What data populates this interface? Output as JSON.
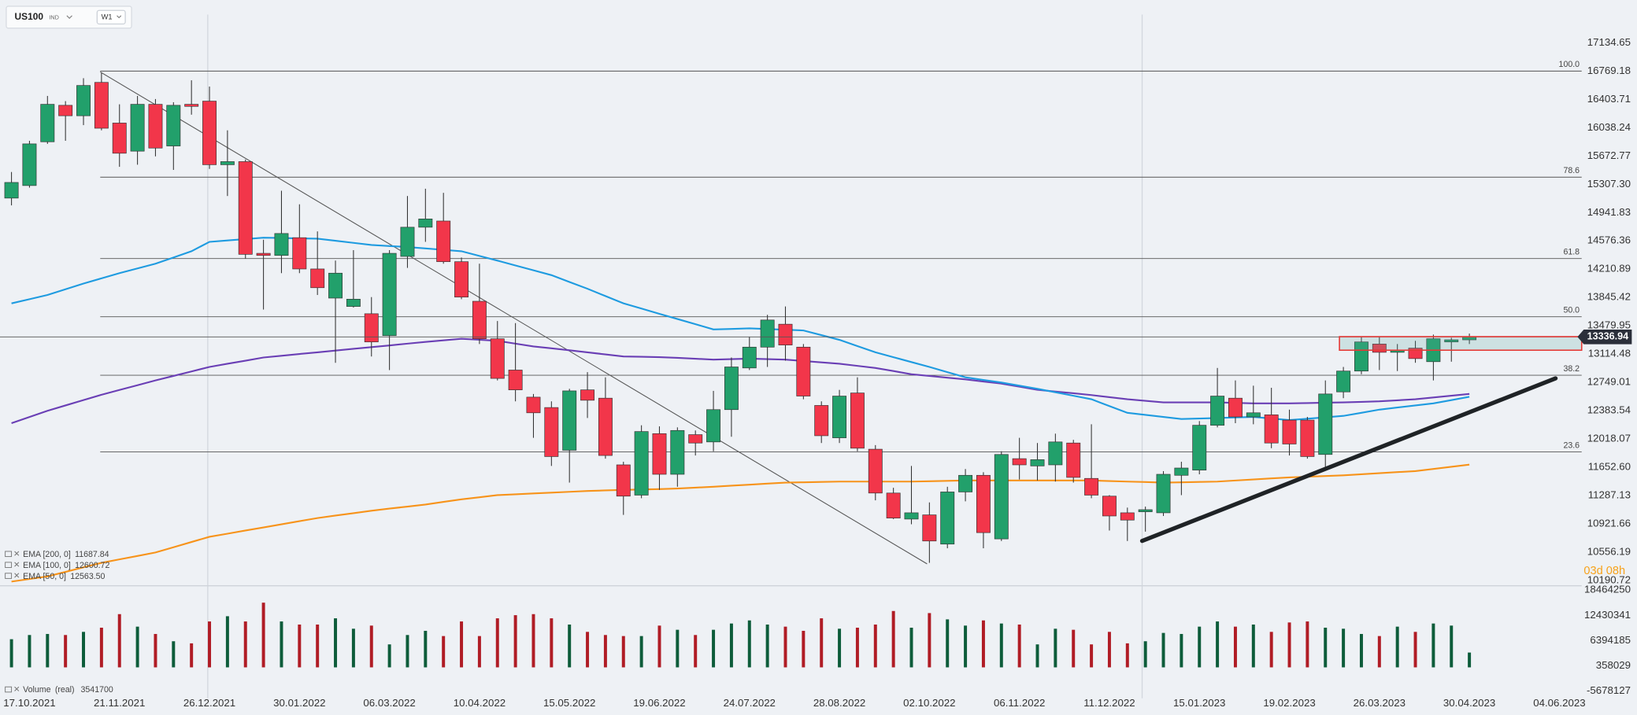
{
  "header": {
    "symbol": "US100",
    "market": "IND",
    "timeframe": "W1"
  },
  "chart_data": {
    "type": "candlestick",
    "categories": [
      null,
      "17.10.2021",
      null,
      null,
      null,
      null,
      "21.11.2021",
      null,
      null,
      null,
      null,
      "26.12.2021",
      null,
      null,
      null,
      null,
      "30.01.2022",
      null,
      null,
      null,
      null,
      "06.03.2022",
      null,
      null,
      null,
      null,
      "10.04.2022",
      null,
      null,
      null,
      null,
      "15.05.2022",
      null,
      null,
      null,
      null,
      "19.06.2022",
      null,
      null,
      null,
      null,
      "24.07.2022",
      null,
      null,
      null,
      null,
      "28.08.2022",
      null,
      null,
      null,
      null,
      "02.10.2022",
      null,
      null,
      null,
      null,
      "06.11.2022",
      null,
      null,
      null,
      null,
      "11.12.2022",
      null,
      null,
      null,
      null,
      "15.01.2023",
      null,
      null,
      null,
      null,
      "19.02.2023",
      null,
      null,
      null,
      null,
      "26.03.2023",
      null,
      null,
      null,
      null,
      "30.04.2023",
      null,
      null,
      null,
      null,
      "04.06.2023"
    ],
    "open": [
      15129,
      15291,
      15856,
      16327,
      16192,
      16623,
      16098,
      15735,
      16340,
      15802,
      16340,
      16381,
      15560,
      15600,
      14416,
      14389,
      14618,
      14214,
      13838,
      13730,
      13636,
      13353,
      14376,
      14753,
      14833,
      14308,
      13797,
      13313,
      12909,
      12559,
      12425,
      11873,
      12653,
      12546,
      11685,
      11294,
      12088,
      11563,
      12075,
      11981,
      12398,
      12936,
      13205,
      13501,
      13205,
      12452,
      12034,
      12613,
      11887,
      11321,
      10985,
      11039,
      10662,
      11335,
      11550,
      10729,
      11765,
      11671,
      11685,
      11967,
      11510,
      11281,
      11066,
      11079,
      11066,
      11550,
      11617,
      12196,
      12546,
      12304,
      12331,
      12263,
      12263,
      11819,
      12627,
      12896,
      13245,
      13138,
      13192,
      13017,
      13272,
      13299,
      null,
      null,
      null,
      null,
      null
    ],
    "high": [
      15466,
      15869,
      16448,
      16381,
      16677,
      16744,
      16340,
      16448,
      16408,
      16367,
      16650,
      16569,
      16004,
      15627,
      14591,
      15224,
      15049,
      14699,
      14322,
      14457,
      13851,
      14457,
      15156,
      15250,
      15197,
      14362,
      14282,
      13542,
      13515,
      12600,
      12505,
      12667,
      12882,
      12815,
      11725,
      12196,
      12182,
      12169,
      12129,
      12640,
      13071,
      13340,
      13622,
      13730,
      13245,
      12505,
      12653,
      12815,
      11940,
      11389,
      11671,
      11200,
      11402,
      11631,
      11590,
      11860,
      12034,
      11967,
      12088,
      12008,
      12209,
      11294,
      11133,
      11146,
      11604,
      11725,
      12250,
      12936,
      12775,
      12707,
      12680,
      12398,
      12304,
      12775,
      12949,
      13340,
      13340,
      13245,
      13286,
      13367,
      13326,
      13380,
      null,
      null,
      null,
      null,
      null
    ],
    "low": [
      15035,
      15264,
      15829,
      15869,
      16071,
      16004,
      15533,
      15560,
      15668,
      15493,
      16206,
      15506,
      15156,
      14349,
      13690,
      14160,
      14160,
      13878,
      13003,
      13716,
      13084,
      12909,
      14228,
      14564,
      14282,
      13824,
      13245,
      12775,
      12505,
      12034,
      11671,
      11456,
      12290,
      11765,
      11039,
      11254,
      11362,
      11402,
      11806,
      11860,
      12048,
      12909,
      12949,
      13030,
      12532,
      11967,
      11967,
      11860,
      11227,
      10985,
      10918,
      10420,
      10608,
      11214,
      10608,
      10702,
      11496,
      11483,
      11469,
      11456,
      11254,
      10837,
      10702,
      10823,
      11025,
      11294,
      11563,
      12169,
      12223,
      12209,
      11900,
      11806,
      11765,
      11658,
      12546,
      12855,
      12909,
      12896,
      13003,
      12775,
      13017,
      13245,
      null,
      null,
      null,
      null,
      null
    ],
    "close": [
      15331,
      15829,
      16340,
      16192,
      16583,
      16031,
      15708,
      16340,
      15775,
      16327,
      16313,
      15560,
      15600,
      14403,
      14389,
      14672,
      14214,
      13972,
      14160,
      13824,
      13272,
      14416,
      14753,
      14860,
      14308,
      13851,
      13313,
      12801,
      12653,
      12357,
      11792,
      12640,
      12519,
      11806,
      11281,
      12115,
      11563,
      12129,
      11967,
      12398,
      12949,
      13205,
      13555,
      13232,
      12573,
      12061,
      12573,
      11900,
      11321,
      10998,
      11066,
      10702,
      11335,
      11550,
      10810,
      11819,
      11685,
      11752,
      11981,
      11523,
      11294,
      11025,
      10972,
      11106,
      11563,
      11644,
      12196,
      12573,
      12304,
      12357,
      11967,
      11954,
      11792,
      12600,
      12896,
      13272,
      13138,
      13165,
      13057,
      13313,
      13299,
      13336.94,
      null,
      null,
      null,
      null,
      null
    ],
    "up_color": "#22a06b",
    "down_color": "#f2364a",
    "ylim": [
      10124,
      17552
    ],
    "yticks": [
      17134.65,
      16769.18,
      16403.71,
      16038.24,
      15672.77,
      {
        "value": 15307.3,
        "label": "15307.30"
      },
      14941.83,
      14576.36,
      14210.89,
      13845.42,
      13479.95,
      13114.48,
      12749.01,
      12383.54,
      12018.07,
      {
        "value": 11652.6,
        "label": "11652.60"
      },
      11287.13,
      10921.66,
      10556.19,
      10190.72
    ],
    "overlays": [
      {
        "name": "EMA [200, 0]",
        "color": "#f7931a",
        "values": [
          10178,
          10211,
          10245,
          10303,
          10362,
          10420,
          10465,
          10509,
          10554,
          10621,
          10689,
          10756,
          10796,
          10837,
          10877,
          10917,
          10958,
          10998,
          11030,
          11061,
          11093,
          11120,
          11146,
          11173,
          11207,
          11240,
          11267,
          11294,
          11305,
          11316,
          11326,
          11337,
          11348,
          11355,
          11362,
          11367,
          11372,
          11380,
          11391,
          11402,
          11416,
          11429,
          11443,
          11456,
          11460,
          11465,
          11469,
          11469,
          11469,
          11469,
          11469,
          11474,
          11478,
          11483,
          11483,
          11483,
          11483,
          11483,
          11483,
          11483,
          11483,
          11476,
          11469,
          11463,
          11456,
          11460,
          11465,
          11469,
          11483,
          11496,
          11510,
          11523,
          11532,
          11541,
          11550,
          11564,
          11577,
          11591,
          11604,
          11632,
          11660,
          11687.84,
          null,
          null,
          null,
          null,
          null
        ]
      },
      {
        "name": "EMA [100, 0]",
        "color": "#6a3fb5",
        "values": [
          12223,
          12303,
          12383,
          12452,
          12521,
          12590,
          12652,
          12713,
          12775,
          12833,
          12891,
          12949,
          12990,
          13030,
          13071,
          13093,
          13116,
          13138,
          13160,
          13183,
          13205,
          13227,
          13250,
          13272,
          13293,
          13313,
          13300,
          13286,
          13250,
          13214,
          13190,
          13164,
          13138,
          13111,
          13084,
          13080,
          13075,
          13066,
          13055,
          13044,
          13050,
          13057,
          13050,
          13044,
          13026,
          13008,
          12990,
          12963,
          12936,
          12896,
          12855,
          12833,
          12810,
          12788,
          12761,
          12734,
          12694,
          12654,
          12631,
          12609,
          12586,
          12559,
          12532,
          12512,
          12492,
          12492,
          12492,
          12492,
          12485,
          12479,
          12479,
          12479,
          12483,
          12488,
          12492,
          12498,
          12505,
          12518,
          12532,
          12555,
          12578,
          12600.72,
          null,
          null,
          null,
          null,
          null
        ]
      },
      {
        "name": "EMA [50, 0]",
        "color": "#1e9be0",
        "values": [
          13770,
          13824,
          13878,
          13952,
          14026,
          14093,
          14160,
          14221,
          14282,
          14362,
          14443,
          14564,
          14582,
          14600,
          14618,
          14614,
          14609,
          14605,
          14578,
          14551,
          14524,
          14510,
          14497,
          14479,
          14461,
          14443,
          14382,
          14322,
          14259,
          14197,
          14134,
          14046,
          13959,
          13864,
          13770,
          13703,
          13635,
          13568,
          13501,
          13434,
          13440,
          13447,
          13438,
          13429,
          13420,
          13360,
          13299,
          13218,
          13138,
          13075,
          13012,
          12949,
          12882,
          12815,
          12781,
          12748,
          12707,
          12667,
          12622,
          12577,
          12532,
          12444,
          12357,
          12330,
          12304,
          12277,
          12283,
          12290,
          12297,
          12304,
          12283,
          12263,
          12281,
          12299,
          12317,
          12357,
          12398,
          12425,
          12452,
          12479,
          12521,
          12563.5,
          null,
          null,
          null,
          null,
          null
        ],
        "value_labels": [
          null,
          null,
          null,
          null,
          null,
          null,
          null,
          null,
          null,
          null,
          null,
          null,
          null,
          null,
          null,
          null,
          null,
          null,
          null,
          null,
          null,
          null,
          null,
          null,
          null,
          null,
          null,
          null,
          null,
          null,
          null,
          null,
          null,
          null,
          null,
          null,
          null,
          null,
          null,
          null,
          null,
          null,
          null,
          null,
          null,
          null,
          null,
          null,
          null,
          null,
          null,
          null,
          null,
          null,
          null,
          null,
          null,
          null,
          null,
          null,
          null,
          null,
          null,
          null,
          null,
          null,
          null,
          null,
          null,
          null,
          null,
          null,
          null,
          null,
          null,
          null,
          null,
          null,
          null,
          null,
          null,
          "12563.50",
          null,
          null,
          null,
          null,
          null
        ]
      }
    ],
    "fib_levels": [
      {
        "label": "100.0",
        "price": 16769
      },
      {
        "label": "78.6",
        "price": 15399
      },
      {
        "label": "61.8",
        "price": 14349
      },
      {
        "label": "50.0",
        "price": 13597
      },
      {
        "label": "38.2",
        "price": 12842
      },
      {
        "label": "23.6",
        "price": 11852
      }
    ],
    "volume": {
      "name": "Volume",
      "mode": "(real)",
      "values": [
        6730000,
        7730000,
        7980000,
        7730000,
        8480000,
        9480000,
        12720000,
        9730000,
        7980000,
        6240000,
        5740000,
        10970000,
        12220000,
        10970000,
        15460000,
        10970000,
        10230000,
        10230000,
        11720000,
        9230000,
        9980000,
        5490000,
        7730000,
        8730000,
        7480000,
        10970000,
        7480000,
        11720000,
        12470000,
        12720000,
        11720000,
        10230000,
        8480000,
        7730000,
        7480000,
        7480000,
        9980000,
        8980000,
        7730000,
        8980000,
        10480000,
        11220000,
        10230000,
        9730000,
        8730000,
        11720000,
        9230000,
        9480000,
        10230000,
        13470000,
        9480000,
        12970000,
        11470000,
        9980000,
        11220000,
        10480000,
        10230000,
        5490000,
        9230000,
        8980000,
        5490000,
        8480000,
        5740000,
        6240000,
        8230000,
        7980000,
        9730000,
        10970000,
        9730000,
        10230000,
        8480000,
        10730000,
        10970000,
        9480000,
        9230000,
        7980000,
        7480000,
        9730000,
        8480000,
        10480000,
        9980000,
        3541700,
        null,
        null,
        null,
        null,
        null
      ],
      "up_color": "#0d5c3a",
      "down_color": "#b01c25",
      "ylim": [
        -7400000,
        19500000
      ],
      "yticks": [
        18464250,
        12430341,
        6394185,
        358029,
        -5678127
      ]
    },
    "countdown": "03d 08h"
  }
}
